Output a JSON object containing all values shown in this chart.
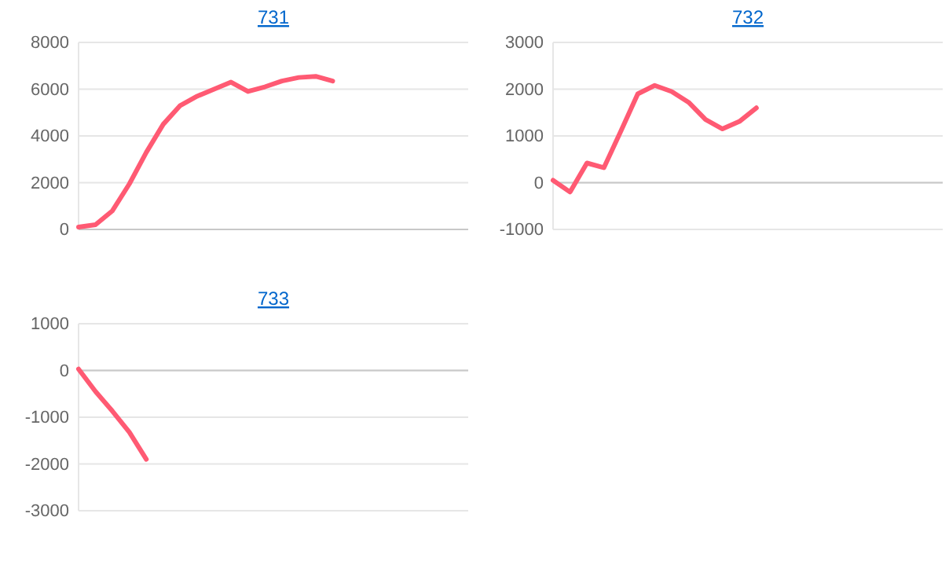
{
  "chart_data": [
    {
      "type": "line",
      "title": "731",
      "categories": [
        null,
        null,
        null,
        null,
        null,
        null,
        null,
        null,
        null,
        null,
        null,
        null,
        null,
        null,
        null,
        null,
        null,
        null,
        null,
        null,
        null,
        null,
        null,
        null
      ],
      "series": [
        {
          "color": "#ff5a73",
          "values": [
            100,
            200,
            800,
            1950,
            3300,
            4500,
            5300,
            5700,
            6000,
            6300,
            5900,
            6100,
            6350,
            6500,
            6550,
            6350,
            null,
            null,
            null,
            null,
            null,
            null,
            null,
            null
          ]
        }
      ],
      "ylim": [
        0,
        8000
      ],
      "yticks": [
        0,
        2000,
        4000,
        6000,
        8000
      ],
      "grid": "y",
      "tick_labels": "y",
      "marker": "none"
    },
    {
      "type": "line",
      "title": "732",
      "categories": [
        null,
        null,
        null,
        null,
        null,
        null,
        null,
        null,
        null,
        null,
        null,
        null,
        null,
        null,
        null,
        null,
        null,
        null,
        null,
        null,
        null,
        null,
        null,
        null
      ],
      "series": [
        {
          "color": "#ff5a73",
          "values": [
            50,
            -200,
            420,
            320,
            1100,
            1900,
            2080,
            1950,
            1720,
            1350,
            1150,
            1310,
            1600,
            null,
            null,
            null,
            null,
            null,
            null,
            null,
            null,
            null,
            null,
            null
          ]
        }
      ],
      "ylim": [
        -1000,
        3000
      ],
      "yticks": [
        -1000,
        0,
        1000,
        2000,
        3000
      ],
      "grid": "y",
      "tick_labels": "y",
      "marker": "none"
    },
    {
      "type": "line",
      "title": "733",
      "categories": [
        null,
        null,
        null,
        null,
        null,
        null,
        null,
        null,
        null,
        null,
        null,
        null,
        null,
        null,
        null,
        null,
        null,
        null,
        null,
        null,
        null,
        null,
        null,
        null
      ],
      "series": [
        {
          "color": "#ff5a73",
          "values": [
            30,
            -450,
            -870,
            -1320,
            -1900,
            null,
            null,
            null,
            null,
            null,
            null,
            null,
            null,
            null,
            null,
            null,
            null,
            null,
            null,
            null,
            null,
            null,
            null,
            null
          ]
        }
      ],
      "ylim": [
        -3000,
        1000
      ],
      "yticks": [
        -3000,
        -2000,
        -1000,
        0,
        1000
      ],
      "grid": "y",
      "tick_labels": "y",
      "marker": "none"
    }
  ]
}
